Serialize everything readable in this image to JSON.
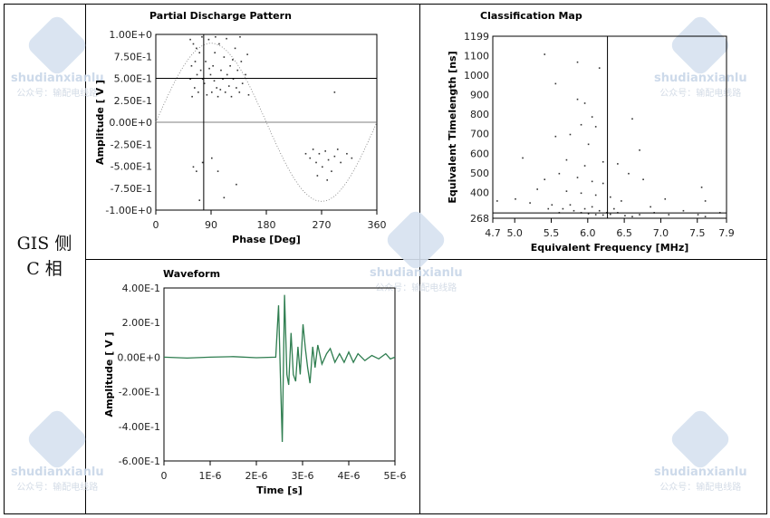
{
  "row_label": [
    "GIS 侧",
    "C 相"
  ],
  "watermark": {
    "text": "shudianxianlu",
    "sub": "公众号：输配电线路"
  },
  "chart_data": [
    {
      "type": "scatter",
      "title": "Partial Discharge Pattern",
      "xlabel": "Phase [Deg]",
      "ylabel": "Amplitude [ V ]",
      "xlim": [
        0,
        360
      ],
      "ylim": [
        -1,
        1
      ],
      "xticks": [
        "0",
        "90",
        "180",
        "270",
        "360"
      ],
      "yticks": [
        "1.00E+0",
        "7.50E-1",
        "5.00E-1",
        "2.50E-1",
        "0.00E+0",
        "-2.50E-1",
        "-5.00E-1",
        "-7.50E-1",
        "-1.00E+0"
      ],
      "cursor": {
        "x": 78,
        "y": 0.5
      },
      "reference_sine_amplitude": 0.9,
      "points": [
        [
          55,
          0.95
        ],
        [
          60,
          0.9
        ],
        [
          65,
          0.85
        ],
        [
          70,
          0.8
        ],
        [
          72,
          0.6
        ],
        [
          75,
          0.5
        ],
        [
          78,
          0.45
        ],
        [
          80,
          0.7
        ],
        [
          85,
          0.95
        ],
        [
          88,
          0.55
        ],
        [
          90,
          0.35
        ],
        [
          92,
          0.65
        ],
        [
          95,
          0.8
        ],
        [
          98,
          0.4
        ],
        [
          100,
          0.3
        ],
        [
          102,
          0.9
        ],
        [
          105,
          0.6
        ],
        [
          108,
          0.5
        ],
        [
          110,
          0.75
        ],
        [
          112,
          0.35
        ],
        [
          115,
          0.55
        ],
        [
          118,
          0.42
        ],
        [
          120,
          0.65
        ],
        [
          122,
          0.3
        ],
        [
          125,
          0.5
        ],
        [
          128,
          0.85
        ],
        [
          130,
          0.4
        ],
        [
          132,
          0.6
        ],
        [
          135,
          0.35
        ],
        [
          138,
          0.7
        ],
        [
          140,
          0.45
        ],
        [
          145,
          0.55
        ],
        [
          148,
          0.78
        ],
        [
          150,
          0.32
        ],
        [
          58,
          0.3
        ],
        [
          62,
          0.4
        ],
        [
          66,
          0.55
        ],
        [
          68,
          0.35
        ],
        [
          74,
          0.98
        ],
        [
          82,
          0.32
        ],
        [
          86,
          0.62
        ],
        [
          94,
          0.48
        ],
        [
          96,
          0.98
        ],
        [
          104,
          0.38
        ],
        [
          114,
          0.96
        ],
        [
          124,
          0.72
        ],
        [
          136,
          0.98
        ],
        [
          55,
          0.5
        ],
        [
          57,
          0.65
        ],
        [
          63,
          0.7
        ],
        [
          243,
          -0.35
        ],
        [
          250,
          -0.4
        ],
        [
          255,
          -0.3
        ],
        [
          260,
          -0.45
        ],
        [
          265,
          -0.35
        ],
        [
          270,
          -0.5
        ],
        [
          275,
          -0.32
        ],
        [
          280,
          -0.42
        ],
        [
          285,
          -0.55
        ],
        [
          290,
          -0.38
        ],
        [
          295,
          -0.3
        ],
        [
          300,
          -0.45
        ],
        [
          310,
          -0.35
        ],
        [
          318,
          -0.4
        ],
        [
          262,
          -0.6
        ],
        [
          278,
          -0.65
        ],
        [
          60,
          -0.5
        ],
        [
          65,
          -0.55
        ],
        [
          75,
          -0.45
        ],
        [
          90,
          -0.4
        ],
        [
          110,
          -0.85
        ],
        [
          130,
          -0.7
        ],
        [
          70,
          -0.88
        ],
        [
          100,
          -0.55
        ],
        [
          290,
          0.35
        ]
      ]
    },
    {
      "type": "scatter",
      "title": "Classification Map",
      "xlabel": "Equivalent Frequency [MHz]",
      "ylabel": "Equivalent Timelength [ns]",
      "xlim": [
        4.7,
        7.9
      ],
      "ylim": [
        268,
        1199
      ],
      "xticks": [
        "4.7",
        "5.0",
        "5.5",
        "6.0",
        "6.5",
        "7.0",
        "7.5",
        "7.9"
      ],
      "yticks": [
        "1199",
        "1100",
        "1000",
        "900",
        "800",
        "700",
        "600",
        "500",
        "400",
        "268"
      ],
      "cursor": {
        "x": 6.27,
        "y": 295
      },
      "points": [
        [
          5.4,
          1110
        ],
        [
          5.85,
          1070
        ],
        [
          6.15,
          1040
        ],
        [
          5.55,
          960
        ],
        [
          5.85,
          880
        ],
        [
          5.95,
          860
        ],
        [
          6.05,
          790
        ],
        [
          6.6,
          780
        ],
        [
          5.9,
          750
        ],
        [
          6.1,
          740
        ],
        [
          5.75,
          700
        ],
        [
          5.55,
          690
        ],
        [
          6.0,
          650
        ],
        [
          6.7,
          620
        ],
        [
          5.1,
          580
        ],
        [
          5.7,
          570
        ],
        [
          6.2,
          560
        ],
        [
          5.95,
          540
        ],
        [
          6.4,
          550
        ],
        [
          5.6,
          500
        ],
        [
          5.85,
          480
        ],
        [
          6.05,
          460
        ],
        [
          6.2,
          450
        ],
        [
          5.4,
          470
        ],
        [
          6.55,
          500
        ],
        [
          6.75,
          470
        ],
        [
          5.3,
          420
        ],
        [
          5.7,
          410
        ],
        [
          5.9,
          400
        ],
        [
          6.1,
          390
        ],
        [
          6.3,
          380
        ],
        [
          6.45,
          360
        ],
        [
          5.0,
          370
        ],
        [
          5.2,
          350
        ],
        [
          5.5,
          340
        ],
        [
          5.65,
          320
        ],
        [
          5.8,
          310
        ],
        [
          5.9,
          300
        ],
        [
          6.0,
          295
        ],
        [
          6.1,
          290
        ],
        [
          6.2,
          288
        ],
        [
          6.3,
          292
        ],
        [
          6.4,
          300
        ],
        [
          6.5,
          285
        ],
        [
          6.6,
          280
        ],
        [
          6.7,
          290
        ],
        [
          6.9,
          300
        ],
        [
          7.1,
          290
        ],
        [
          7.3,
          310
        ],
        [
          7.5,
          290
        ],
        [
          7.6,
          280
        ],
        [
          7.8,
          300
        ],
        [
          5.45,
          320
        ],
        [
          5.75,
          340
        ],
        [
          6.05,
          330
        ],
        [
          6.35,
          320
        ],
        [
          6.85,
          330
        ],
        [
          7.05,
          370
        ],
        [
          7.55,
          430
        ],
        [
          7.6,
          360
        ],
        [
          4.75,
          360
        ],
        [
          5.6,
          300
        ],
        [
          6.15,
          310
        ],
        [
          6.25,
          300
        ],
        [
          5.95,
          320
        ]
      ]
    },
    {
      "type": "line",
      "title": "Waveform",
      "xlabel": "Time [s]",
      "ylabel": "Amplitude [ V ]",
      "xlim": [
        0,
        5e-06
      ],
      "ylim": [
        -0.6,
        0.4
      ],
      "xticks": [
        "0",
        "1E-6",
        "2E-6",
        "3E-6",
        "4E-6",
        "5E-6"
      ],
      "yticks": [
        "4.00E-1",
        "2.00E-1",
        "0.00E+0",
        "-2.00E-1",
        "-4.00E-1",
        "-6.00E-1"
      ],
      "color": "#2e7d4f",
      "points": [
        [
          0,
          0
        ],
        [
          5e-07,
          -0.005
        ],
        [
          1e-06,
          0
        ],
        [
          1.5e-06,
          0.003
        ],
        [
          2e-06,
          -0.003
        ],
        [
          2.42e-06,
          0
        ],
        [
          2.48e-06,
          0.3
        ],
        [
          2.52e-06,
          -0.1
        ],
        [
          2.56e-06,
          -0.49
        ],
        [
          2.61e-06,
          0.36
        ],
        [
          2.66e-06,
          -0.1
        ],
        [
          2.7e-06,
          -0.16
        ],
        [
          2.75e-06,
          0.14
        ],
        [
          2.8e-06,
          -0.1
        ],
        [
          2.85e-06,
          -0.14
        ],
        [
          2.9e-06,
          0.06
        ],
        [
          2.95e-06,
          -0.1
        ],
        [
          3.01e-06,
          0.19
        ],
        [
          3.06e-06,
          0.05
        ],
        [
          3.11e-06,
          -0.06
        ],
        [
          3.16e-06,
          -0.15
        ],
        [
          3.22e-06,
          0.06
        ],
        [
          3.27e-06,
          -0.06
        ],
        [
          3.33e-06,
          0.07
        ],
        [
          3.42e-06,
          -0.04
        ],
        [
          3.52e-06,
          0.02
        ],
        [
          3.6e-06,
          0.05
        ],
        [
          3.7e-06,
          -0.03
        ],
        [
          3.8e-06,
          0.02
        ],
        [
          3.9e-06,
          -0.03
        ],
        [
          4e-06,
          0.03
        ],
        [
          4.1e-06,
          -0.03
        ],
        [
          4.2e-06,
          0.02
        ],
        [
          4.35e-06,
          -0.02
        ],
        [
          4.5e-06,
          0.01
        ],
        [
          4.65e-06,
          -0.01
        ],
        [
          4.8e-06,
          0.02
        ],
        [
          4.9e-06,
          -0.01
        ],
        [
          5e-06,
          0
        ]
      ]
    }
  ]
}
